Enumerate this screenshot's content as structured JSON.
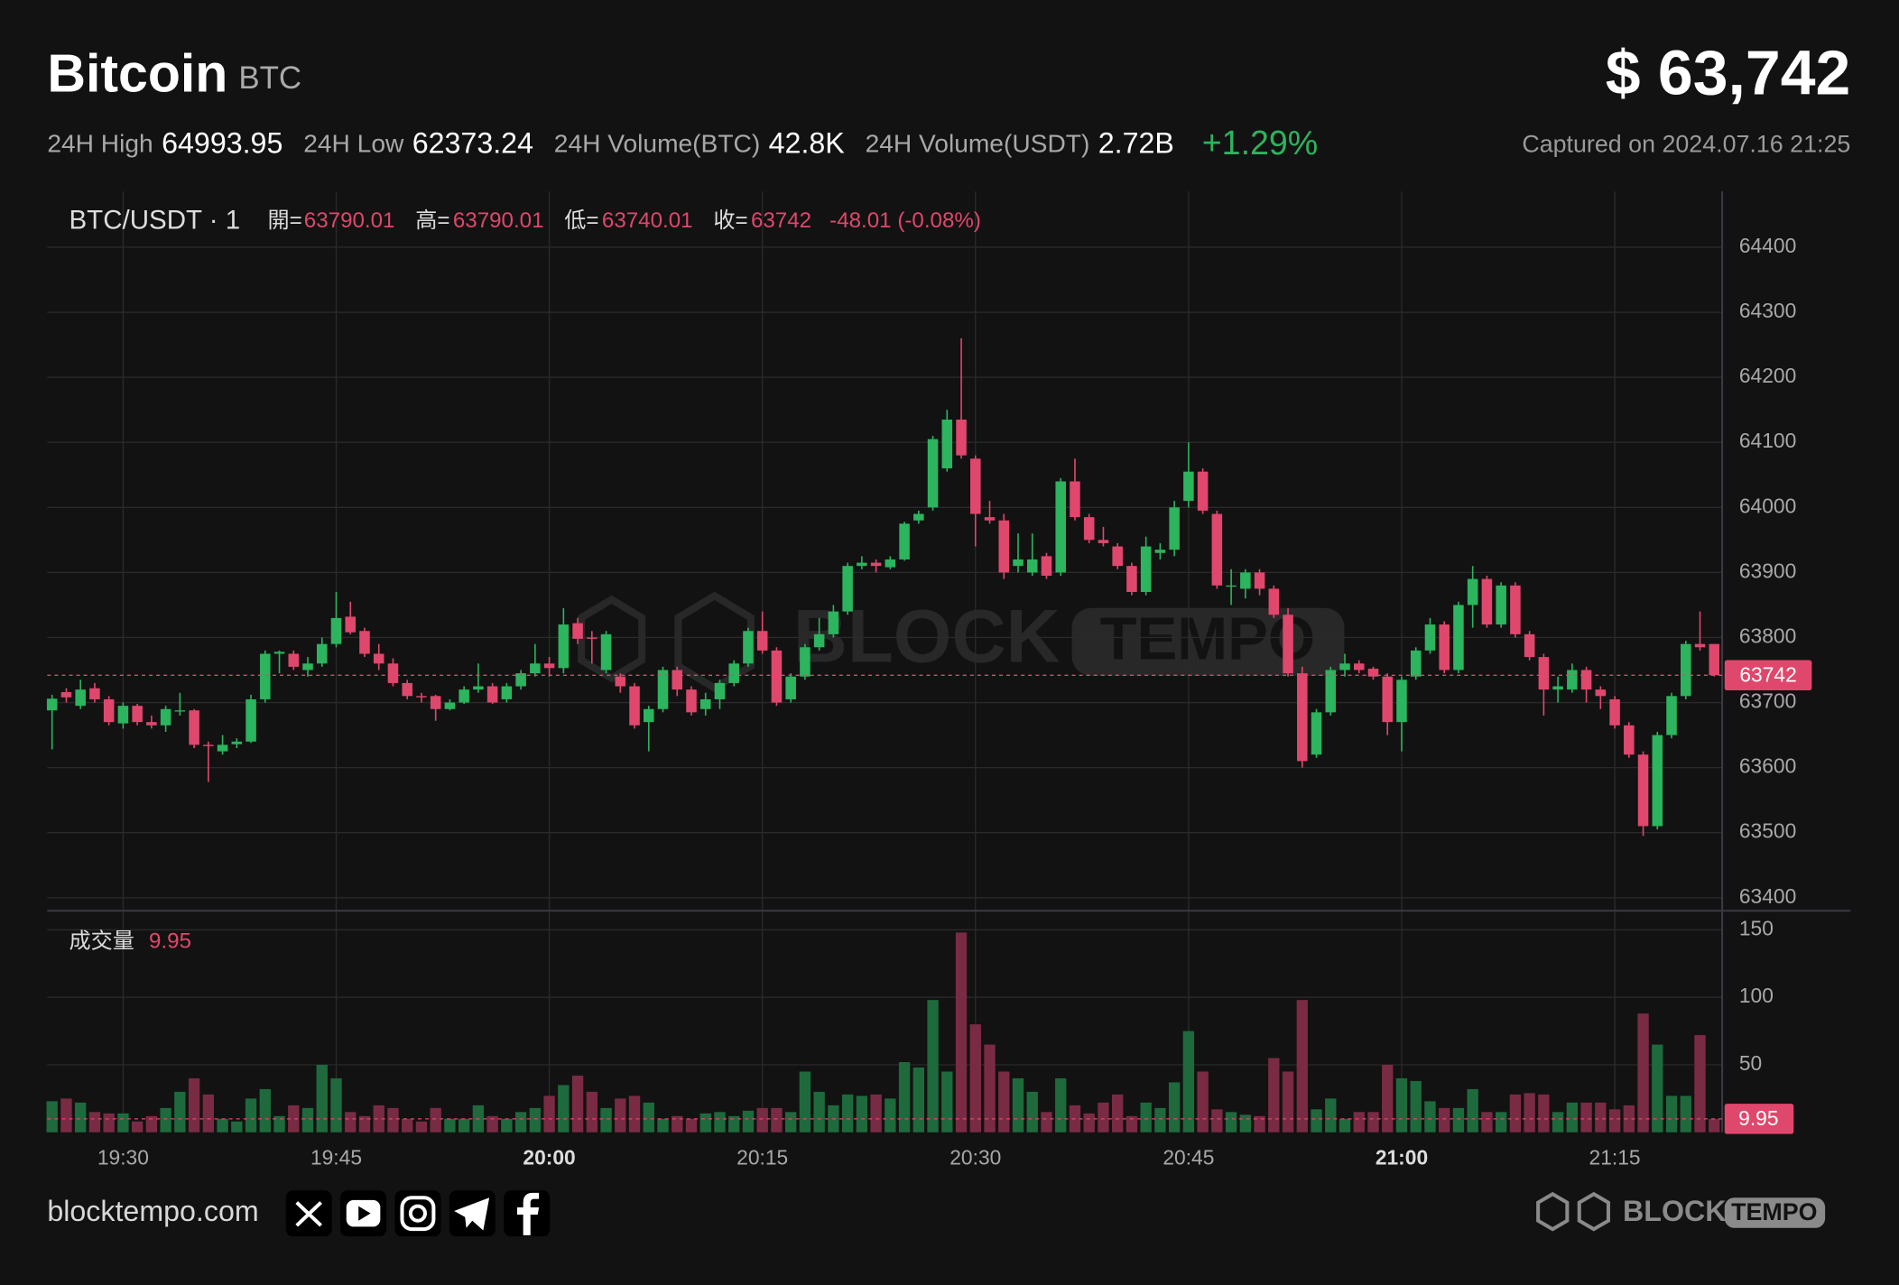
{
  "header": {
    "title": "Bitcoin",
    "symbol": "BTC",
    "price": "$ 63,742",
    "stats": [
      {
        "label": "24H High",
        "value": "64993.95"
      },
      {
        "label": "24H Low",
        "value": "62373.24"
      },
      {
        "label": "24H Volume(BTC)",
        "value": "42.8K"
      },
      {
        "label": "24H Volume(USDT)",
        "value": "2.72B"
      }
    ],
    "change": "+1.29%",
    "captured": "Captured on 2024.07.16 21:25"
  },
  "chart_data": {
    "type": "candlestick",
    "symbol": "BTC/USDT · 1",
    "legend_labels": {
      "open": "開=",
      "high": "高=",
      "low": "低=",
      "close": "收="
    },
    "change_label": "-48.01 (-0.08%)",
    "volume_title": "成交量",
    "categories": [
      "19:25",
      "19:26",
      "19:27",
      "19:28",
      "19:29",
      "19:30",
      "19:31",
      "19:32",
      "19:33",
      "19:34",
      "19:35",
      "19:36",
      "19:37",
      "19:38",
      "19:39",
      "19:40",
      "19:41",
      "19:42",
      "19:43",
      "19:44",
      "19:45",
      "19:46",
      "19:47",
      "19:48",
      "19:49",
      "19:50",
      "19:51",
      "19:52",
      "19:53",
      "19:54",
      "19:55",
      "19:56",
      "19:57",
      "19:58",
      "19:59",
      "20:00",
      "20:01",
      "20:02",
      "20:03",
      "20:04",
      "20:05",
      "20:06",
      "20:07",
      "20:08",
      "20:09",
      "20:10",
      "20:11",
      "20:12",
      "20:13",
      "20:14",
      "20:15",
      "20:16",
      "20:17",
      "20:18",
      "20:19",
      "20:20",
      "20:21",
      "20:22",
      "20:23",
      "20:24",
      "20:25",
      "20:26",
      "20:27",
      "20:28",
      "20:29",
      "20:30",
      "20:31",
      "20:32",
      "20:33",
      "20:34",
      "20:35",
      "20:36",
      "20:37",
      "20:38",
      "20:39",
      "20:40",
      "20:41",
      "20:42",
      "20:43",
      "20:44",
      "20:45",
      "20:46",
      "20:47",
      "20:48",
      "20:49",
      "20:50",
      "20:51",
      "20:52",
      "20:53",
      "20:54",
      "20:55",
      "20:56",
      "20:57",
      "20:58",
      "20:59",
      "21:00",
      "21:01",
      "21:02",
      "21:03",
      "21:04",
      "21:05",
      "21:06",
      "21:07",
      "21:08",
      "21:09",
      "21:10",
      "21:11",
      "21:12",
      "21:13",
      "21:14",
      "21:15",
      "21:16",
      "21:17",
      "21:18",
      "21:19",
      "21:20",
      "21:21",
      "21:22"
    ],
    "open": [
      63688,
      63716,
      63695,
      63722,
      63705,
      63668,
      63695,
      63670,
      63665,
      63688,
      63688,
      63635,
      63625,
      63636,
      63640,
      63705,
      63775,
      63775,
      63750,
      63760,
      63790,
      63832,
      63810,
      63775,
      63760,
      63730,
      63710,
      63710,
      63690,
      63700,
      63720,
      63725,
      63705,
      63725,
      63745,
      63760,
      63753,
      63822,
      63800,
      63750,
      63740,
      63725,
      63670,
      63690,
      63750,
      63720,
      63690,
      63705,
      63730,
      63760,
      63810,
      63780,
      63705,
      63740,
      63785,
      63805,
      63840,
      63910,
      63915,
      63908,
      63920,
      63980,
      64000,
      64060,
      64135,
      64075,
      63985,
      63980,
      63910,
      63900,
      63925,
      63900,
      64040,
      63985,
      63950,
      63940,
      63910,
      63870,
      63930,
      63935,
      64010,
      64055,
      63990,
      63880,
      63875,
      63900,
      63875,
      63835,
      63745,
      63620,
      63685,
      63750,
      63760,
      63752,
      63740,
      63670,
      63740,
      63780,
      63820,
      63750,
      63850,
      63890,
      63820,
      63880,
      63805,
      63770,
      63720,
      63720,
      63750,
      63720,
      63705,
      63665,
      63620,
      63510,
      63650,
      63710,
      63790,
      63790.01
    ],
    "high": [
      63712,
      63722,
      63735,
      63730,
      63710,
      63700,
      63698,
      63680,
      63695,
      63715,
      63690,
      63640,
      63650,
      63645,
      63712,
      63780,
      63780,
      63780,
      63770,
      63800,
      63870,
      63855,
      63815,
      63790,
      63768,
      63735,
      63715,
      63712,
      63705,
      63725,
      63760,
      63730,
      63730,
      63750,
      63790,
      63770,
      63845,
      63830,
      63810,
      63810,
      63745,
      63730,
      63695,
      63755,
      63755,
      63725,
      63715,
      63735,
      63765,
      63815,
      63840,
      63785,
      63745,
      63790,
      63830,
      63850,
      63915,
      63925,
      63920,
      63925,
      63978,
      63995,
      64110,
      64150,
      64260,
      64080,
      64010,
      63990,
      63960,
      63960,
      63930,
      64045,
      64075,
      63990,
      63970,
      63945,
      63915,
      63955,
      63945,
      64010,
      64100,
      64060,
      63995,
      63905,
      63905,
      63905,
      63880,
      63845,
      63755,
      63690,
      63755,
      63775,
      63765,
      63755,
      63745,
      63740,
      63785,
      63830,
      63825,
      63855,
      63910,
      63895,
      63885,
      63885,
      63810,
      63775,
      63740,
      63760,
      63755,
      63725,
      63710,
      63670,
      63625,
      63655,
      63715,
      63795,
      63840,
      63790.01
    ],
    "low": [
      63628,
      63700,
      63690,
      63700,
      63665,
      63660,
      63665,
      63660,
      63655,
      63680,
      63630,
      63578,
      63620,
      63630,
      63638,
      63700,
      63745,
      63750,
      63740,
      63755,
      63785,
      63805,
      63770,
      63750,
      63725,
      63705,
      63700,
      63672,
      63688,
      63698,
      63715,
      63698,
      63700,
      63720,
      63740,
      63740,
      63745,
      63790,
      63760,
      63745,
      63715,
      63660,
      63625,
      63685,
      63710,
      63680,
      63680,
      63690,
      63725,
      63755,
      63775,
      63695,
      63700,
      63735,
      63780,
      63800,
      63835,
      63905,
      63900,
      63905,
      63918,
      63975,
      63995,
      64055,
      64075,
      63940,
      63975,
      63890,
      63900,
      63895,
      63890,
      63895,
      63980,
      63945,
      63940,
      63905,
      63865,
      63865,
      63920,
      63925,
      64000,
      63990,
      63875,
      63850,
      63860,
      63865,
      63830,
      63740,
      63600,
      63615,
      63680,
      63740,
      63745,
      63735,
      63650,
      63625,
      63735,
      63775,
      63745,
      63745,
      63815,
      63815,
      63815,
      63800,
      63765,
      63680,
      63700,
      63715,
      63700,
      63690,
      63660,
      63615,
      63495,
      63505,
      63645,
      63705,
      63780,
      63740.01
    ],
    "close": [
      63706,
      63708,
      63720,
      63705,
      63670,
      63695,
      63670,
      63665,
      63690,
      63688,
      63635,
      63633,
      63635,
      63640,
      63705,
      63775,
      63778,
      63755,
      63760,
      63790,
      63830,
      63808,
      63775,
      63760,
      63730,
      63710,
      63708,
      63690,
      63700,
      63720,
      63725,
      63700,
      63725,
      63745,
      63760,
      63753,
      63820,
      63798,
      63798,
      63805,
      63725,
      63665,
      63690,
      63750,
      63720,
      63685,
      63705,
      63730,
      63760,
      63810,
      63780,
      63700,
      63740,
      63785,
      63805,
      63840,
      63910,
      63915,
      63910,
      63920,
      63975,
      63990,
      64105,
      64135,
      64080,
      63990,
      63980,
      63900,
      63920,
      63920,
      63895,
      64040,
      63985,
      63950,
      63945,
      63910,
      63870,
      63940,
      63935,
      64000,
      64055,
      63995,
      63880,
      63880,
      63900,
      63875,
      63835,
      63745,
      63610,
      63685,
      63750,
      63760,
      63750,
      63740,
      63670,
      63735,
      63780,
      63820,
      63750,
      63850,
      63890,
      63820,
      63880,
      63805,
      63770,
      63720,
      63725,
      63750,
      63720,
      63710,
      63665,
      63620,
      63510,
      63650,
      63710,
      63790,
      63785,
      63742
    ],
    "volume": [
      23,
      25,
      22,
      15,
      14,
      14,
      8,
      12,
      18,
      30,
      40,
      28,
      10,
      8,
      25,
      32,
      12,
      20,
      18,
      50,
      40,
      15,
      12,
      20,
      18,
      10,
      8,
      18,
      10,
      10,
      20,
      12,
      10,
      15,
      18,
      27,
      35,
      42,
      30,
      18,
      25,
      27,
      22,
      10,
      12,
      10,
      14,
      15,
      12,
      16,
      18,
      18,
      15,
      45,
      30,
      20,
      28,
      27,
      28,
      25,
      52,
      48,
      98,
      45,
      148,
      80,
      65,
      45,
      40,
      30,
      15,
      40,
      20,
      14,
      22,
      28,
      12,
      22,
      18,
      37,
      75,
      45,
      17,
      15,
      13,
      12,
      55,
      45,
      98,
      17,
      25,
      10,
      15,
      15,
      50,
      40,
      38,
      23,
      18,
      18,
      32,
      15,
      15,
      28,
      29,
      28,
      15,
      22,
      22,
      22,
      17,
      20,
      88,
      65,
      27,
      27,
      72,
      9.95
    ],
    "up_color": "#2cb45e",
    "down_color": "#e0476c",
    "volume_up_color": "#1e6a3c",
    "volume_down_color": "#7a2b44",
    "ylim": [
      63380,
      64482
    ],
    "yticks": [
      63400,
      63500,
      63600,
      63700,
      63800,
      63900,
      64000,
      64100,
      64200,
      64300,
      64400
    ],
    "volume_ylim": [
      0,
      157
    ],
    "volume_yticks": [
      50,
      100,
      150
    ],
    "xticks": [
      "19:30",
      "19:45",
      "20:00",
      "20:15",
      "20:30",
      "20:45",
      "21:00",
      "21:15"
    ],
    "grid": true
  },
  "footer": {
    "site": "blocktempo.com",
    "logo_block": "BLOCK",
    "logo_tempo": "TEMPO"
  },
  "watermark": {
    "block": "BLOCK",
    "tempo": "TEMPO"
  }
}
